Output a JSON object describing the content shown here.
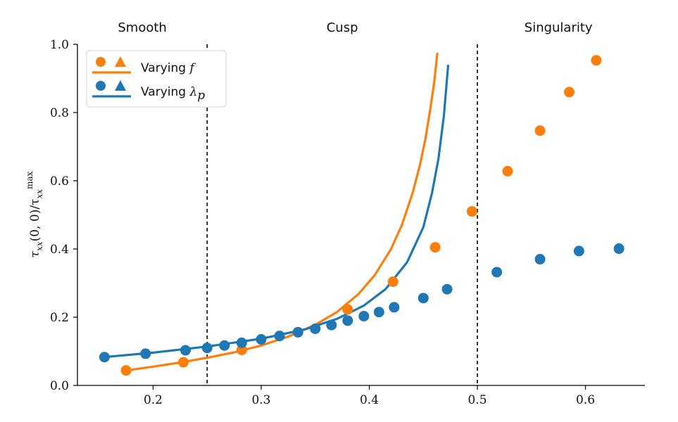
{
  "chart_data": {
    "type": "scatter",
    "xlim": [
      0.13,
      0.655
    ],
    "ylim": [
      0.0,
      1.0
    ],
    "xticks": [
      0.2,
      0.3,
      0.4,
      0.5,
      0.6
    ],
    "xtick_labels": [
      "0.2",
      "0.3",
      "0.4",
      "0.5",
      "0.6"
    ],
    "yticks": [
      0.0,
      0.2,
      0.4,
      0.6,
      0.8,
      1.0
    ],
    "ytick_labels": [
      "0.0",
      "0.2",
      "0.4",
      "0.6",
      "0.8",
      "1.0"
    ],
    "ylabel": "τxx(0, 0)/τxx^max",
    "grid": false,
    "legend_position": "top-left",
    "vlines": [
      0.25,
      0.5
    ],
    "region_labels": [
      {
        "text": "Smooth",
        "x": 0.19
      },
      {
        "text": "Cusp",
        "x": 0.375
      },
      {
        "text": "Singularity",
        "x": 0.575
      }
    ],
    "colors": {
      "orange": "#ff7f0e",
      "blue": "#1f77b4"
    },
    "series": [
      {
        "name": "Varying f",
        "kind": "points",
        "color": "#ff7f0e",
        "x": [
          0.175,
          0.228,
          0.282,
          0.334,
          0.38,
          0.422,
          0.461,
          0.495,
          0.528,
          0.558,
          0.585,
          0.61
        ],
        "y": [
          0.044,
          0.068,
          0.104,
          0.156,
          0.223,
          0.304,
          0.405,
          0.51,
          0.628,
          0.747,
          0.86,
          0.953
        ]
      },
      {
        "name": "Varying λp",
        "kind": "points",
        "color": "#1f77b4",
        "x": [
          0.155,
          0.193,
          0.23,
          0.25,
          0.266,
          0.282,
          0.3,
          0.317,
          0.334,
          0.35,
          0.365,
          0.38,
          0.395,
          0.409,
          0.423,
          0.45,
          0.472,
          0.518,
          0.558,
          0.594,
          0.631
        ],
        "y": [
          0.083,
          0.093,
          0.103,
          0.11,
          0.117,
          0.125,
          0.135,
          0.145,
          0.156,
          0.166,
          0.177,
          0.19,
          0.203,
          0.215,
          0.229,
          0.256,
          0.282,
          0.332,
          0.37,
          0.394,
          0.401
        ]
      },
      {
        "name": "Varying f (curve)",
        "kind": "line",
        "color": "#ff7f0e",
        "x": [
          0.175,
          0.2,
          0.225,
          0.25,
          0.275,
          0.3,
          0.325,
          0.35,
          0.37,
          0.39,
          0.405,
          0.42,
          0.43,
          0.44,
          0.447,
          0.452,
          0.456,
          0.46,
          0.463
        ],
        "y": [
          0.044,
          0.055,
          0.067,
          0.081,
          0.097,
          0.117,
          0.143,
          0.178,
          0.215,
          0.268,
          0.323,
          0.399,
          0.469,
          0.563,
          0.648,
          0.723,
          0.802,
          0.886,
          0.975
        ]
      },
      {
        "name": "Varying λp (curve)",
        "kind": "line",
        "color": "#1f77b4",
        "x": [
          0.155,
          0.2,
          0.25,
          0.3,
          0.34,
          0.37,
          0.395,
          0.415,
          0.435,
          0.45,
          0.458,
          0.464,
          0.469,
          0.473
        ],
        "y": [
          0.083,
          0.096,
          0.114,
          0.137,
          0.164,
          0.195,
          0.234,
          0.282,
          0.361,
          0.464,
          0.564,
          0.665,
          0.789,
          0.94
        ]
      }
    ]
  }
}
